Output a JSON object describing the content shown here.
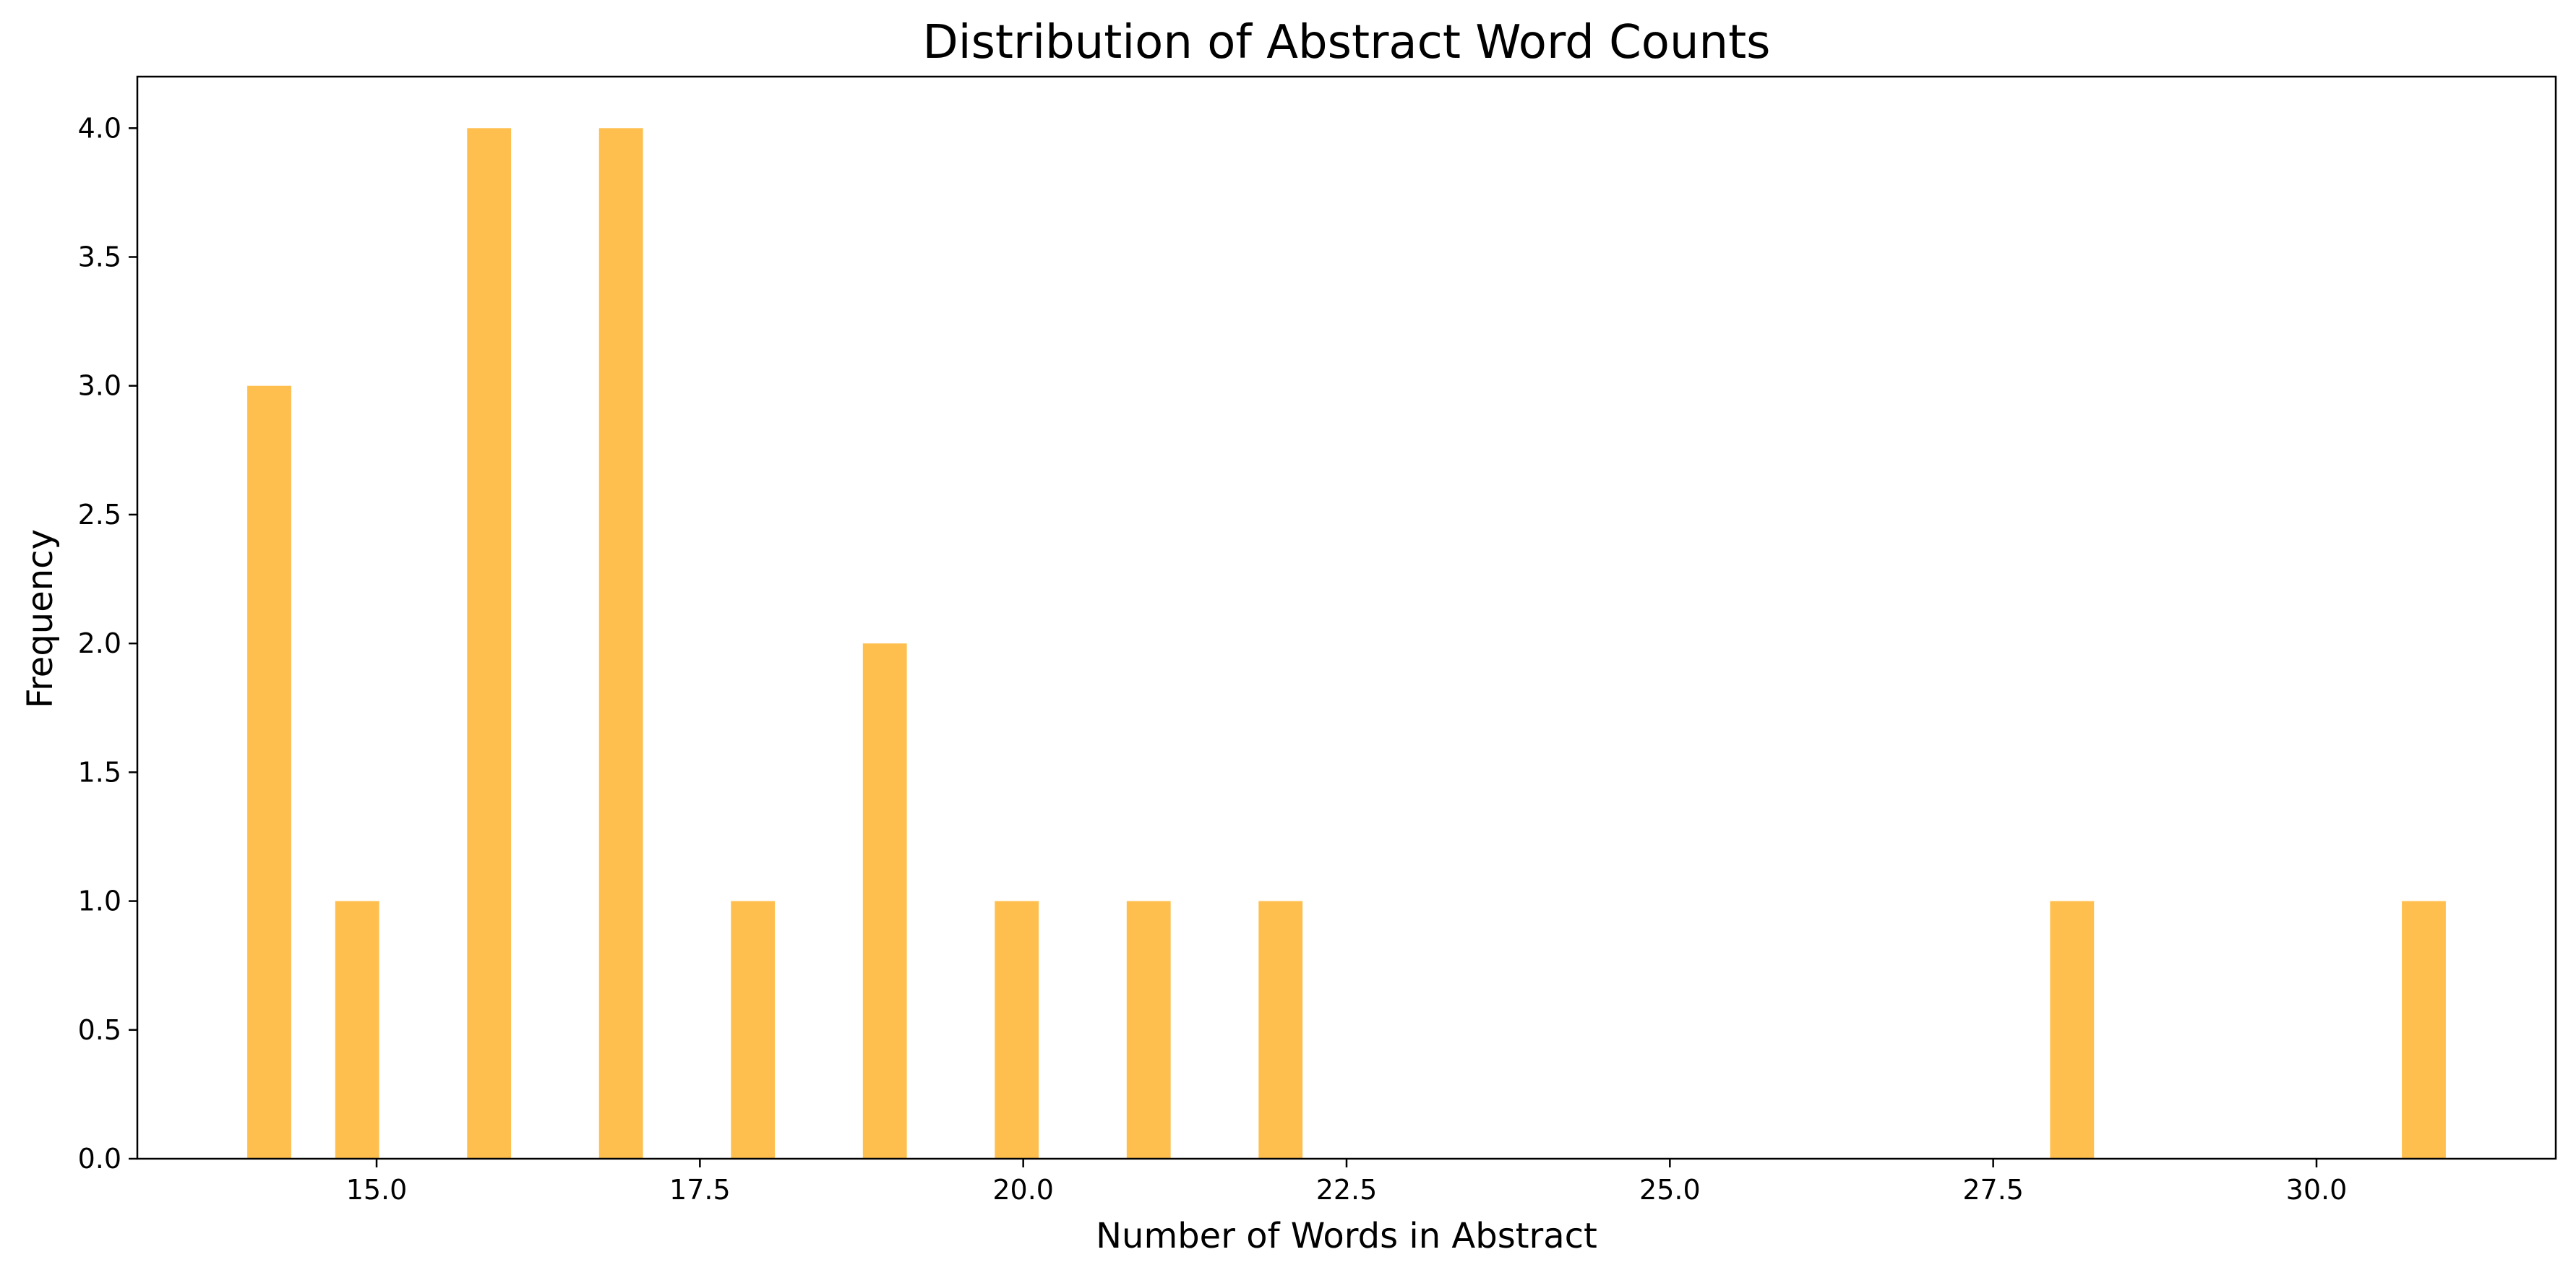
{
  "chart_data": {
    "type": "bar",
    "title": "Distribution of Abstract Word Counts",
    "xlabel": "Number of Words in Abstract",
    "ylabel": "Frequency",
    "bar_color": "#ffbf4f",
    "xlim": [
      13.15,
      31.85
    ],
    "ylim": [
      0,
      4.2
    ],
    "xticks": [
      "15.0",
      "17.5",
      "20.0",
      "22.5",
      "25.0",
      "27.5",
      "30.0"
    ],
    "yticks": [
      "0.0",
      "0.5",
      "1.0",
      "1.5",
      "2.0",
      "2.5",
      "3.0",
      "3.5",
      "4.0"
    ],
    "bin_width": 0.34,
    "bins": [
      {
        "x_start": 14.0,
        "count": 3
      },
      {
        "x_start": 14.68,
        "count": 1
      },
      {
        "x_start": 15.7,
        "count": 4
      },
      {
        "x_start": 16.72,
        "count": 4
      },
      {
        "x_start": 17.74,
        "count": 1
      },
      {
        "x_start": 18.76,
        "count": 2
      },
      {
        "x_start": 19.78,
        "count": 1
      },
      {
        "x_start": 20.8,
        "count": 1
      },
      {
        "x_start": 21.82,
        "count": 1
      },
      {
        "x_start": 27.94,
        "count": 1
      },
      {
        "x_start": 30.66,
        "count": 1
      }
    ],
    "grid": false,
    "legend": "none"
  }
}
